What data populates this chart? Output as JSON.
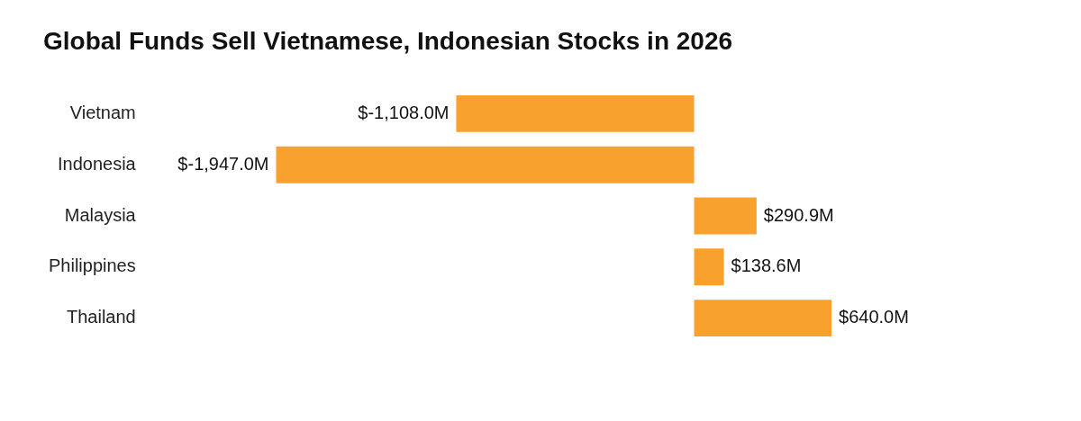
{
  "chart_data": {
    "type": "bar",
    "orientation": "horizontal",
    "title": "Global Funds Sell Vietnamese, Indonesian Stocks in 2026",
    "categories": [
      "Vietnam",
      "Indonesia",
      "Malaysia",
      "Philippines",
      "Thailand"
    ],
    "values": [
      -1108.0,
      -1947.0,
      290.9,
      138.6,
      640.0
    ],
    "value_labels": [
      "$-1,108.0M",
      "$-1,947.0M",
      "$290.9M",
      "$138.6M",
      "$640.0M"
    ],
    "color": "#f9a12e",
    "grid": false,
    "legend": false
  }
}
